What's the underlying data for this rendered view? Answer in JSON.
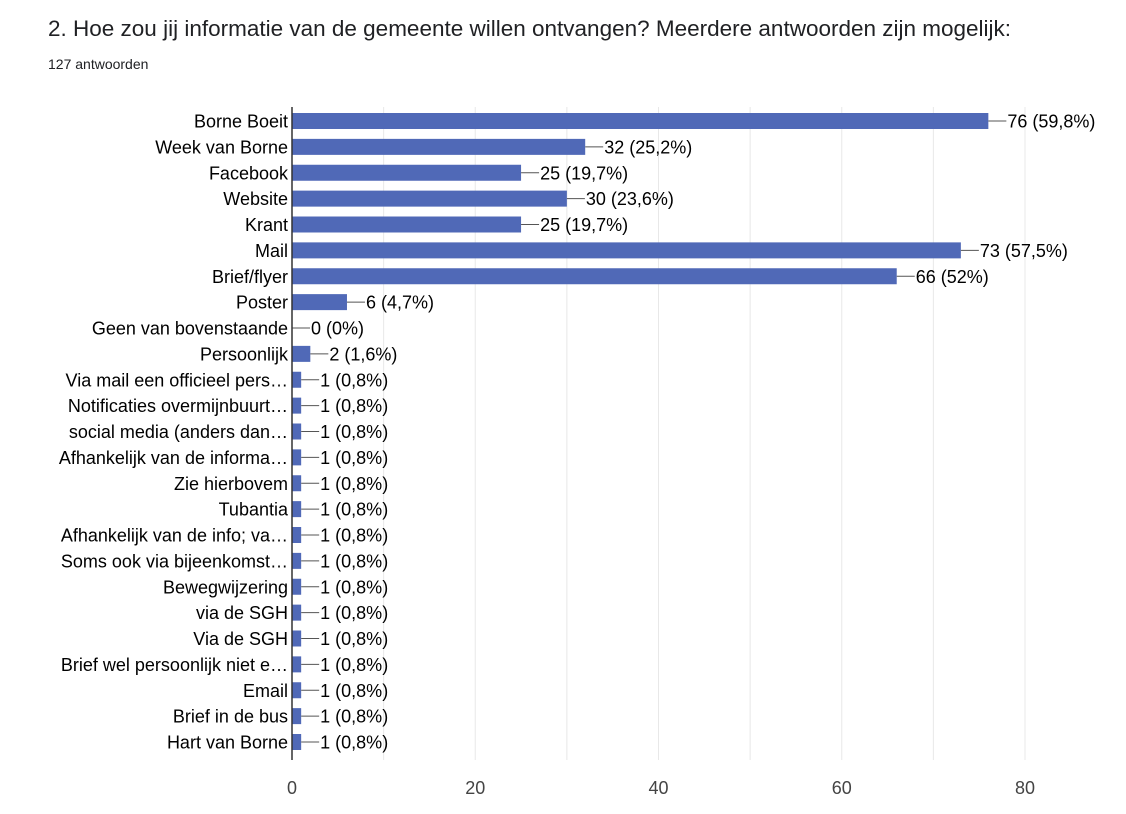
{
  "header": {
    "question": "2. Hoe zou jij informatie van de gemeente willen ontvangen? Meerdere antwoorden zijn mogelijk:",
    "responses": "127 antwoorden"
  },
  "colors": {
    "bar": "#5069b7",
    "grid": "#e8e8e8",
    "axis": "#333333",
    "leader": "#555555"
  },
  "chart_data": {
    "type": "bar",
    "orientation": "horizontal",
    "categories": [
      "Borne Boeit",
      "Week van Borne",
      "Facebook",
      "Website",
      "Krant",
      "Mail",
      "Brief/flyer",
      "Poster",
      "Geen van bovenstaande",
      "Persoonlijk",
      "Via mail een officieel pers…",
      "Notificaties overmijnbuurt…",
      "social media (anders dan…",
      "Afhankelijk van de informa…",
      "Zie hierbovem",
      "Tubantia",
      "Afhankelijk van de info; va…",
      "Soms ook via bijeenkomst…",
      "Bewegwijzering",
      "via de SGH",
      "Via de SGH",
      "Brief wel persoonlijk niet e…",
      "Email",
      "Brief in de bus",
      "Hart van Borne"
    ],
    "values": [
      76,
      32,
      25,
      30,
      25,
      73,
      66,
      6,
      0,
      2,
      1,
      1,
      1,
      1,
      1,
      1,
      1,
      1,
      1,
      1,
      1,
      1,
      1,
      1,
      1
    ],
    "labels": [
      "76 (59,8%)",
      "32 (25,2%)",
      "25 (19,7%)",
      "30 (23,6%)",
      "25 (19,7%)",
      "73 (57,5%)",
      "66 (52%)",
      "6 (4,7%)",
      "0 (0%)",
      "2 (1,6%)",
      "1 (0,8%)",
      "1 (0,8%)",
      "1 (0,8%)",
      "1 (0,8%)",
      "1 (0,8%)",
      "1 (0,8%)",
      "1 (0,8%)",
      "1 (0,8%)",
      "1 (0,8%)",
      "1 (0,8%)",
      "1 (0,8%)",
      "1 (0,8%)",
      "1 (0,8%)",
      "1 (0,8%)",
      "1 (0,8%)"
    ],
    "xlim": [
      0,
      80
    ],
    "xticks": [
      0,
      20,
      40,
      60,
      80
    ],
    "grid": true
  }
}
